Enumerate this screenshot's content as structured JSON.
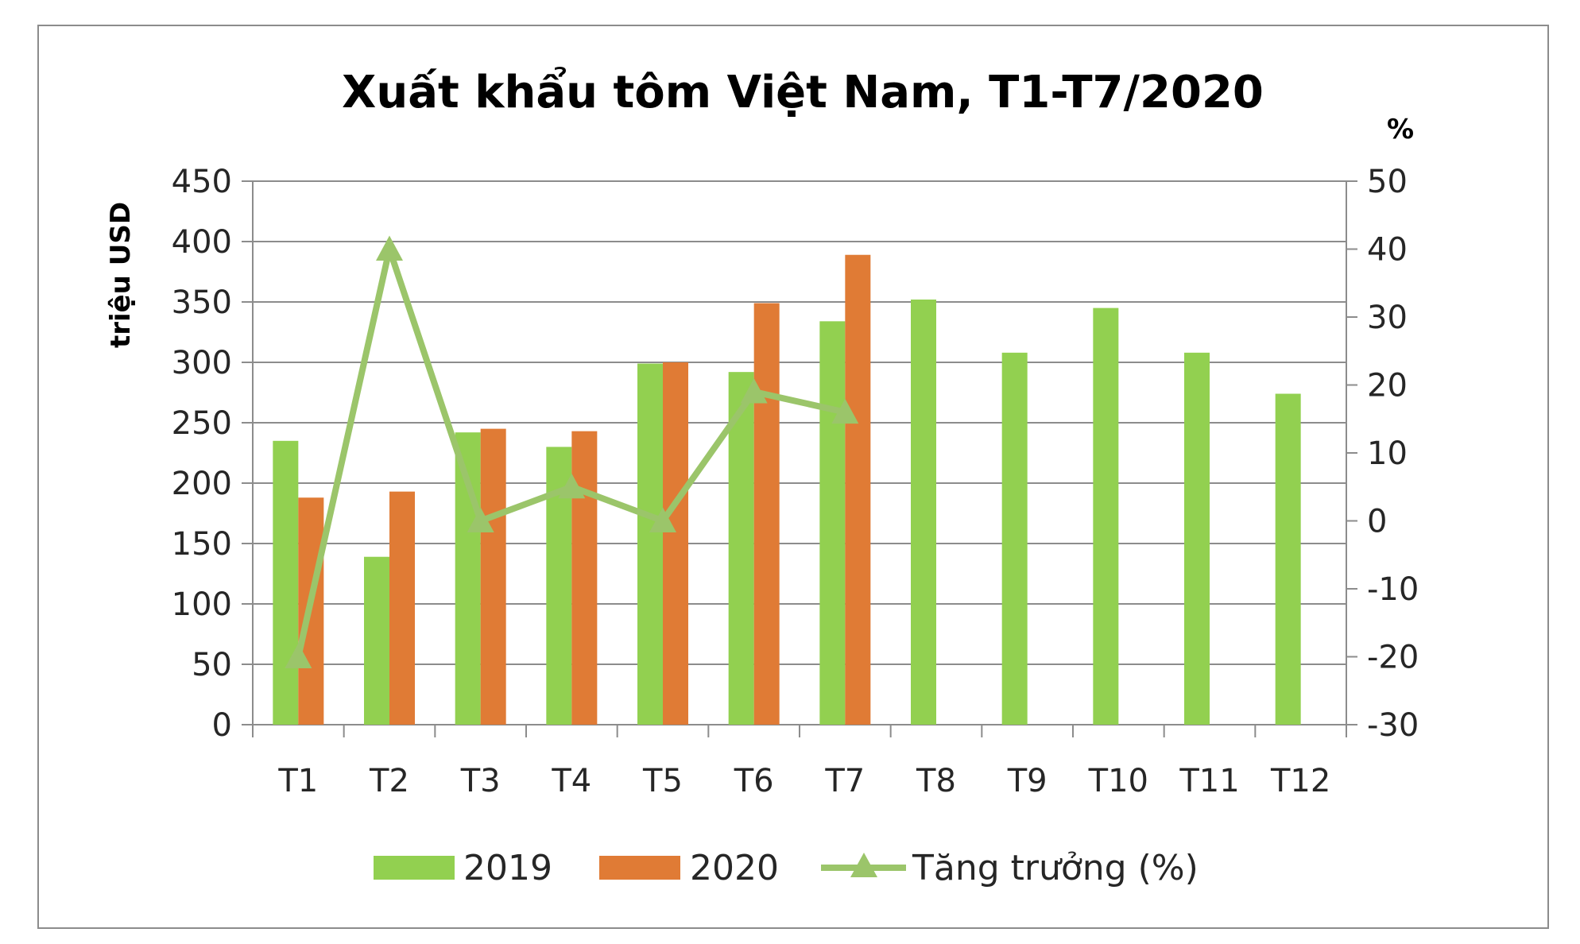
{
  "chart_data": {
    "type": "bar",
    "title": "Xuất khẩu tôm Việt Nam, T1-T7/2020",
    "ylabel": "triệu USD",
    "y2label": "%",
    "categories": [
      "T1",
      "T2",
      "T3",
      "T4",
      "T5",
      "T6",
      "T7",
      "T8",
      "T9",
      "T10",
      "T11",
      "T12"
    ],
    "ylim": [
      0,
      450
    ],
    "yticks": [
      "0",
      "50",
      "100",
      "150",
      "200",
      "250",
      "300",
      "350",
      "400",
      "450"
    ],
    "y2lim": [
      -30,
      50
    ],
    "y2ticks": [
      "-30",
      "-20",
      "-10",
      "0",
      "10",
      "20",
      "30",
      "40",
      "50"
    ],
    "grid": true,
    "legend_position": "bottom",
    "series": [
      {
        "name": "2019",
        "kind": "bar",
        "color": "#92D050",
        "values": [
          235,
          139,
          242,
          230,
          299,
          292,
          334,
          352,
          308,
          345,
          308,
          274
        ]
      },
      {
        "name": "2020",
        "kind": "bar",
        "color": "#E07B35",
        "values": [
          188,
          193,
          245,
          243,
          300,
          349,
          389,
          null,
          null,
          null,
          null,
          null
        ]
      },
      {
        "name": "Tăng trưởng (%)",
        "kind": "line",
        "axis": "right",
        "marker": "triangle",
        "color": "#9BC56A",
        "values": [
          -20,
          40,
          0,
          5,
          0,
          19,
          16,
          null,
          null,
          null,
          null,
          null
        ]
      }
    ]
  }
}
